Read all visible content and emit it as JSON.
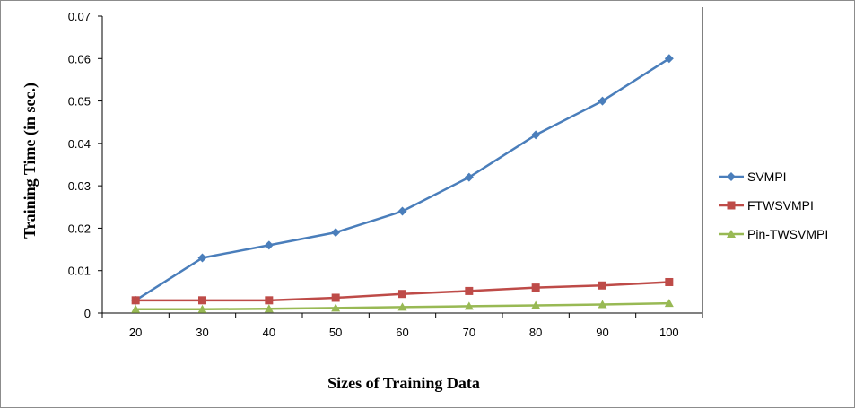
{
  "chart_data": {
    "type": "line",
    "title": "",
    "xlabel": "Sizes of Training Data",
    "ylabel": "Training Time (in sec.)",
    "x": [
      20,
      30,
      40,
      50,
      60,
      70,
      80,
      90,
      100
    ],
    "ylim": [
      0,
      0.07
    ],
    "yticks": [
      "0",
      "0.01",
      "0.02",
      "0.03",
      "0.04",
      "0.05",
      "0.06",
      "0.07"
    ],
    "grid": false,
    "legend_position": "right",
    "series": [
      {
        "name": "SVMPI",
        "color": "#4a7ebb",
        "marker": "diamond",
        "values": [
          0.003,
          0.013,
          0.016,
          0.019,
          0.024,
          0.032,
          0.042,
          0.05,
          0.06
        ]
      },
      {
        "name": "FTWSVMPI",
        "color": "#be4b48",
        "marker": "square",
        "values": [
          0.003,
          0.003,
          0.003,
          0.0036,
          0.0045,
          0.0052,
          0.006,
          0.0065,
          0.0073
        ]
      },
      {
        "name": "Pin-TWSVMPI",
        "color": "#98b954",
        "marker": "triangle",
        "values": [
          0.0009,
          0.0009,
          0.001,
          0.0012,
          0.0014,
          0.0016,
          0.0018,
          0.002,
          0.0023
        ]
      }
    ]
  }
}
